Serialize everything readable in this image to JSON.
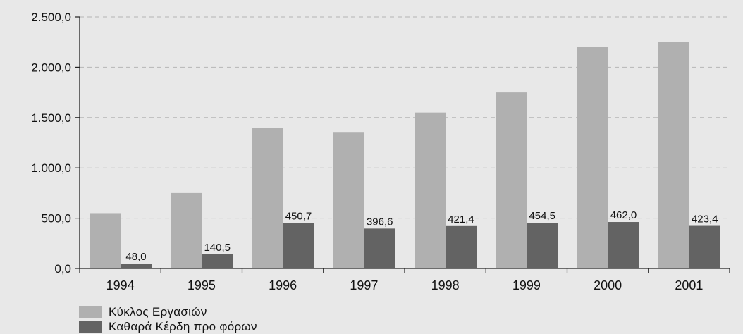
{
  "chart_data": {
    "type": "bar",
    "categories": [
      "1994",
      "1995",
      "1996",
      "1997",
      "1998",
      "1999",
      "2000",
      "2001"
    ],
    "series": [
      {
        "name": "Κύκλος Εργασιών",
        "color": "#b0b0b0",
        "values": [
          550,
          750,
          1400,
          1350,
          1550,
          1750,
          2200,
          2250
        ]
      },
      {
        "name": "Καθαρά Κέρδη προ φόρων",
        "color": "#636363",
        "values": [
          48.0,
          140.5,
          450.7,
          396.6,
          421.4,
          454.5,
          462.0,
          423.4
        ],
        "data_labels": [
          "48,0",
          "140,5",
          "450,7",
          "396,6",
          "421,4",
          "454,5",
          "462,0",
          "423,4"
        ]
      }
    ],
    "ylim": [
      0,
      2500
    ],
    "yticks": [
      0,
      500,
      1000,
      1500,
      2000,
      2500
    ],
    "ytick_labels": [
      "0,0",
      "500,0",
      "1.000,0",
      "1.500,0",
      "2.000,0",
      "2.500,0"
    ],
    "grid": "horizontal dashed",
    "legend_position": "bottom-left"
  }
}
